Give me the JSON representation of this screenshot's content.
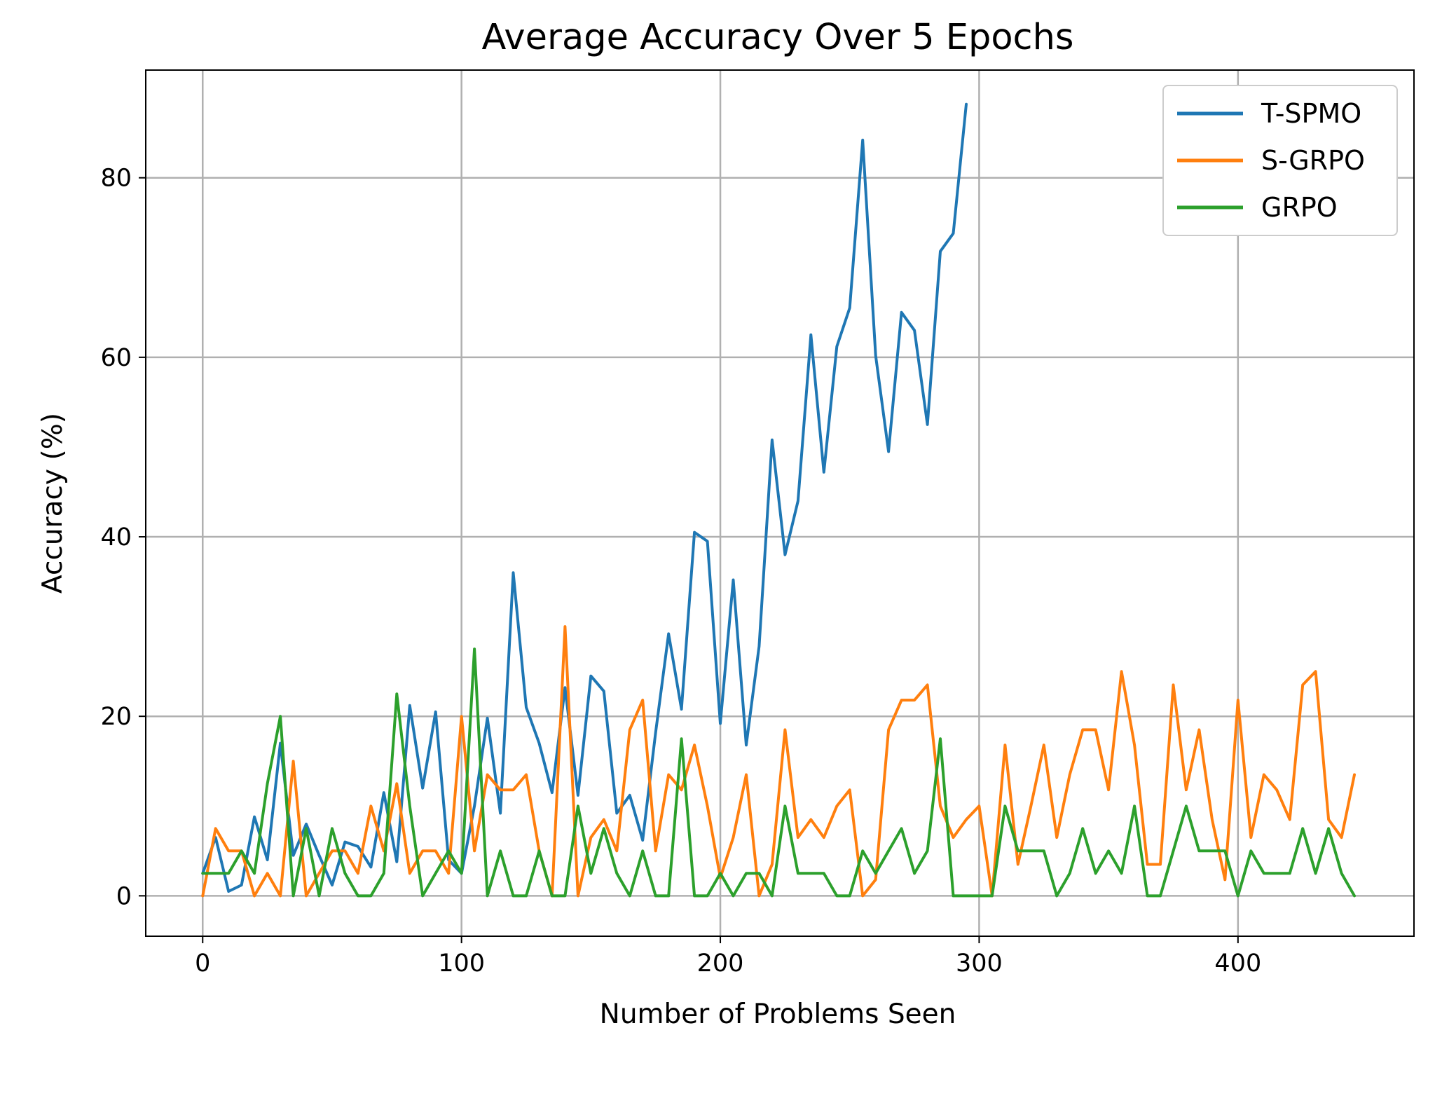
{
  "chart_data": {
    "type": "line",
    "title": "Average Accuracy Over 5 Epochs",
    "xlabel": "Number of Problems Seen",
    "ylabel": "Accuracy (%)",
    "xlim": [
      -22,
      468
    ],
    "ylim": [
      -4.5,
      92
    ],
    "xticks": [
      0,
      100,
      200,
      300,
      400
    ],
    "yticks": [
      0,
      20,
      40,
      60,
      80
    ],
    "xtick_labels": [
      "0",
      "100",
      "200",
      "300",
      "400"
    ],
    "ytick_labels": [
      "0",
      "20",
      "40",
      "60",
      "80"
    ],
    "grid": true,
    "legend_position": "top-right",
    "series": [
      {
        "name": "T-SPMO",
        "color": "#1f77b4",
        "x": [
          0,
          5,
          10,
          15,
          20,
          25,
          30,
          35,
          40,
          45,
          50,
          55,
          60,
          65,
          70,
          75,
          80,
          85,
          90,
          95,
          100,
          105,
          110,
          115,
          120,
          125,
          130,
          135,
          140,
          145,
          150,
          155,
          160,
          165,
          170,
          175,
          180,
          185,
          190,
          195,
          200,
          205,
          210,
          215,
          220,
          225,
          230,
          235,
          240,
          245,
          250,
          255,
          260,
          265,
          270,
          275,
          280,
          285,
          290,
          295
        ],
        "y": [
          2.5,
          6.5,
          0.5,
          1.2,
          8.8,
          4,
          17,
          4.5,
          8,
          4.5,
          1.2,
          6,
          5.5,
          3.2,
          11.5,
          3.8,
          21.2,
          12,
          20.5,
          4,
          2.5,
          10,
          19.8,
          9.2,
          36,
          21,
          17,
          11.5,
          23.2,
          11.2,
          24.5,
          22.8,
          9.2,
          11.2,
          6.2,
          18.2,
          29.2,
          20.8,
          40.5,
          39.5,
          19.2,
          35.2,
          16.8,
          27.8,
          50.8,
          38,
          44,
          62.5,
          47.2,
          61.2,
          65.5,
          84.2,
          60.2,
          49.5,
          65,
          63,
          52.5,
          71.8,
          73.8,
          88.2
        ]
      },
      {
        "name": "S-GRPO",
        "color": "#ff7f0e",
        "x": [
          0,
          5,
          10,
          15,
          20,
          25,
          30,
          35,
          40,
          45,
          50,
          55,
          60,
          65,
          70,
          75,
          80,
          85,
          90,
          95,
          100,
          105,
          110,
          115,
          120,
          125,
          130,
          135,
          140,
          145,
          150,
          155,
          160,
          165,
          170,
          175,
          180,
          185,
          190,
          195,
          200,
          205,
          210,
          215,
          220,
          225,
          230,
          235,
          240,
          245,
          250,
          255,
          260,
          265,
          270,
          275,
          280,
          285,
          290,
          295,
          300,
          305,
          310,
          315,
          320,
          325,
          330,
          335,
          340,
          345,
          350,
          355,
          360,
          365,
          370,
          375,
          380,
          385,
          390,
          395,
          400,
          405,
          410,
          415,
          420,
          425,
          430,
          435,
          440,
          445
        ],
        "y": [
          0,
          7.5,
          5,
          5,
          0,
          2.5,
          0,
          15,
          0,
          2.5,
          5,
          5,
          2.5,
          10,
          5,
          12.5,
          2.5,
          5,
          5,
          2.5,
          20,
          5,
          13.5,
          11.8,
          11.8,
          13.5,
          5,
          0,
          30,
          0,
          6.5,
          8.5,
          5,
          18.5,
          21.8,
          5,
          13.5,
          11.8,
          16.8,
          10,
          2,
          6.5,
          13.5,
          0,
          3.5,
          18.5,
          6.5,
          8.5,
          6.5,
          10,
          11.8,
          0,
          1.8,
          18.5,
          21.8,
          21.8,
          23.5,
          10,
          6.5,
          8.5,
          10,
          0,
          16.8,
          3.5,
          10,
          16.8,
          6.5,
          13.5,
          18.5,
          18.5,
          11.8,
          25,
          16.8,
          3.5,
          3.5,
          23.5,
          11.8,
          18.5,
          8.5,
          1.8,
          21.8,
          6.5,
          13.5,
          11.8,
          8.5,
          23.5,
          25,
          8.5,
          6.5,
          13.5
        ]
      },
      {
        "name": "GRPO",
        "color": "#2ca02c",
        "x": [
          0,
          5,
          10,
          15,
          20,
          25,
          30,
          35,
          40,
          45,
          50,
          55,
          60,
          65,
          70,
          75,
          80,
          85,
          90,
          95,
          100,
          105,
          110,
          115,
          120,
          125,
          130,
          135,
          140,
          145,
          150,
          155,
          160,
          165,
          170,
          175,
          180,
          185,
          190,
          195,
          200,
          205,
          210,
          215,
          220,
          225,
          230,
          235,
          240,
          245,
          250,
          255,
          260,
          265,
          270,
          275,
          280,
          285,
          290,
          295,
          300,
          305,
          310,
          315,
          320,
          325,
          330,
          335,
          340,
          345,
          350,
          355,
          360,
          365,
          370,
          375,
          380,
          385,
          390,
          395,
          400,
          405,
          410,
          415,
          420,
          425,
          430,
          435,
          440,
          445
        ],
        "y": [
          2.5,
          2.5,
          2.5,
          5,
          2.5,
          12.5,
          20,
          0,
          7.5,
          0,
          7.5,
          2.5,
          0,
          0,
          2.5,
          22.5,
          10,
          0,
          2.5,
          5,
          2.5,
          27.5,
          0,
          5,
          0,
          0,
          5,
          0,
          0,
          10,
          2.5,
          7.5,
          2.5,
          0,
          5,
          0,
          0,
          17.5,
          0,
          0,
          2.5,
          0,
          2.5,
          2.5,
          0,
          10,
          2.5,
          2.5,
          2.5,
          0,
          0,
          5,
          2.5,
          5,
          7.5,
          2.5,
          5,
          17.5,
          0,
          0,
          0,
          0,
          10,
          5,
          5,
          5,
          0,
          2.5,
          7.5,
          2.5,
          5,
          2.5,
          10,
          0,
          0,
          5,
          10,
          5,
          5,
          5,
          0,
          5,
          2.5,
          2.5,
          2.5,
          7.5,
          2.5,
          7.5,
          2.5,
          0
        ]
      }
    ]
  }
}
